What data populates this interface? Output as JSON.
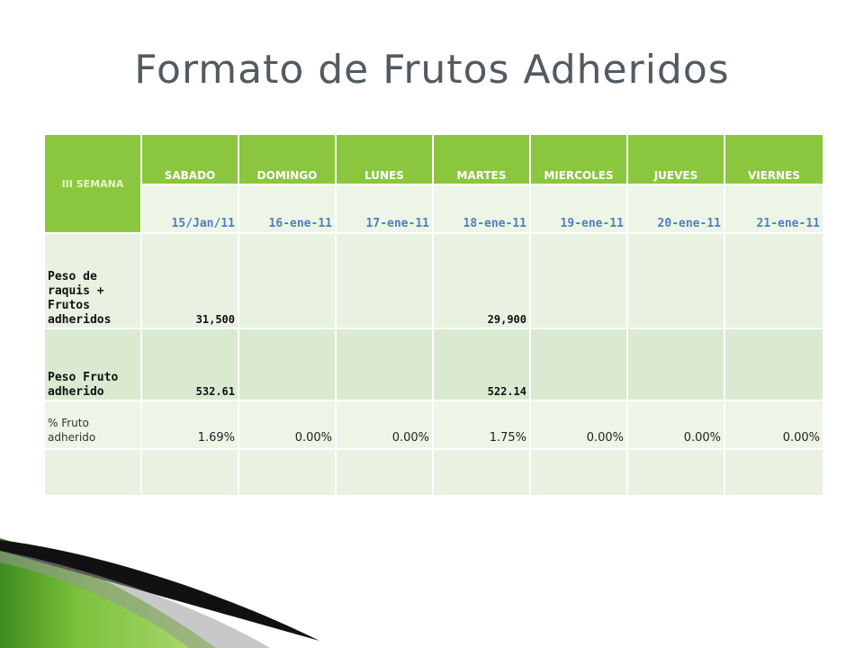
{
  "title": "Formato de Frutos Adheridos",
  "table": {
    "semana_label": "III SEMANA",
    "days": [
      "SABADO",
      "DOMINGO",
      "LUNES",
      "MARTES",
      "MIERCOLES",
      "JUEVES",
      "VIERNES"
    ],
    "dates": [
      "15/Jan/11",
      "16-ene-11",
      "17-ene-11",
      "18-ene-11",
      "19-ene-11",
      "20-ene-11",
      "21-ene-11"
    ],
    "rows": [
      {
        "label": "Peso de raquis + Frutos adheridos",
        "values": [
          "31,500",
          "",
          "",
          "29,900",
          "",
          "",
          ""
        ]
      },
      {
        "label": "Peso Fruto adherido",
        "values": [
          "532.61",
          "",
          "",
          "522.14",
          "",
          "",
          ""
        ]
      },
      {
        "label": "% Fruto adherido",
        "values": [
          "1.69%",
          "0.00%",
          "0.00%",
          "1.75%",
          "0.00%",
          "0.00%",
          "0.00%"
        ]
      },
      {
        "label": "",
        "values": [
          "",
          "",
          "",
          "",
          "",
          "",
          ""
        ]
      }
    ]
  },
  "colors": {
    "header_green": "#8bc63f",
    "title_gray": "#525a62",
    "date_blue": "#4f7fc1",
    "row_light": "#e9f2e1",
    "row_mid": "#d9ead0"
  }
}
